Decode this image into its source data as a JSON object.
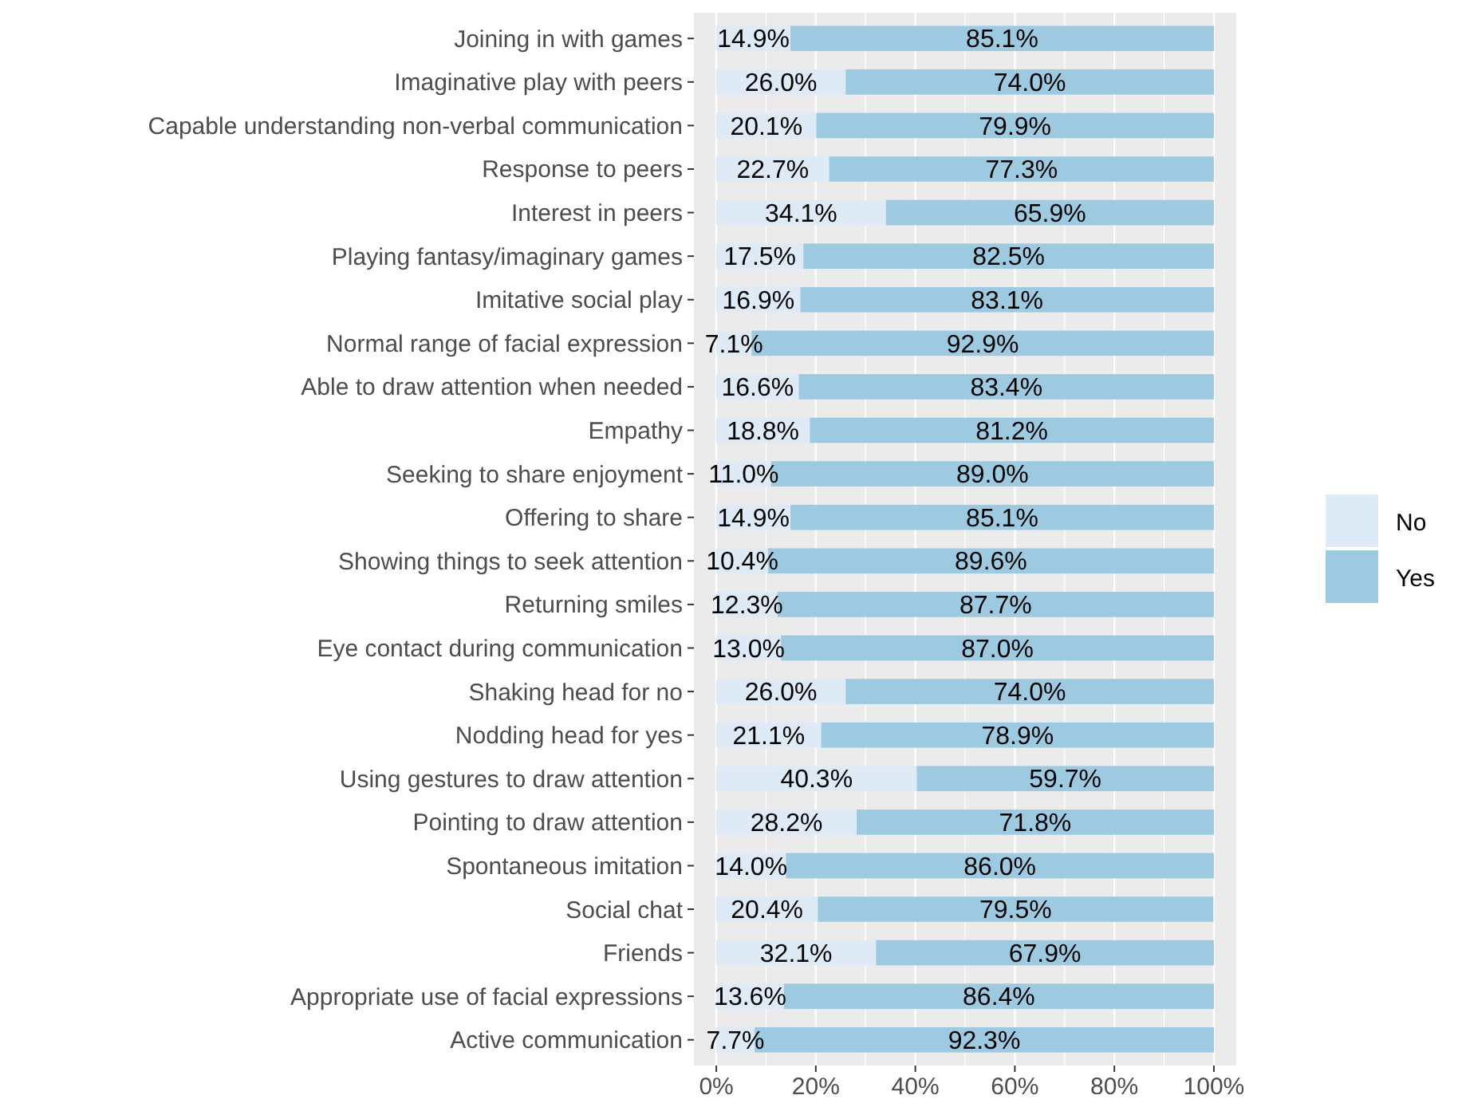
{
  "chart_data": {
    "type": "bar",
    "orientation": "horizontal",
    "stacked": true,
    "categories": [
      "Joining in with games",
      "Imaginative play with peers",
      "Capable understanding non-verbal communication",
      "Response to peers",
      "Interest in peers",
      "Playing fantasy/imaginary games",
      "Imitative social play",
      "Normal range of facial expression",
      "Able to draw attention when needed",
      "Empathy",
      "Seeking to share enjoyment",
      "Offering to share",
      "Showing things to seek attention",
      "Returning smiles",
      "Eye contact during communication",
      "Shaking head for no",
      "Nodding head for yes",
      "Using gestures to draw attention",
      "Pointing to draw attention",
      "Spontaneous imitation",
      "Social chat",
      "Friends",
      "Appropriate use of facial expressions",
      "Active communication"
    ],
    "series": [
      {
        "name": "No",
        "color": "#deebf7",
        "values": [
          14.9,
          26.0,
          20.1,
          22.7,
          34.1,
          17.5,
          16.9,
          7.1,
          16.6,
          18.8,
          11.0,
          14.9,
          10.4,
          12.3,
          13.0,
          26.0,
          21.1,
          40.3,
          28.2,
          14.0,
          20.4,
          32.1,
          13.6,
          7.7
        ],
        "value_labels": [
          "14.9%",
          "26.0%",
          "20.1%",
          "22.7%",
          "34.1%",
          "17.5%",
          "16.9%",
          "7.1%",
          "16.6%",
          "18.8%",
          "11.0%",
          "14.9%",
          "10.4%",
          "12.3%",
          "13.0%",
          "26.0%",
          "21.1%",
          "40.3%",
          "28.2%",
          "14.0%",
          "20.4%",
          "32.1%",
          "13.6%",
          "7.7%"
        ]
      },
      {
        "name": "Yes",
        "color": "#9ecae1",
        "values": [
          85.1,
          74.0,
          79.9,
          77.3,
          65.9,
          82.5,
          83.1,
          92.9,
          83.4,
          81.2,
          89.0,
          85.1,
          89.6,
          87.7,
          87.0,
          74.0,
          78.9,
          59.7,
          71.8,
          86.0,
          79.5,
          67.9,
          86.4,
          92.3
        ],
        "value_labels": [
          "85.1%",
          "74.0%",
          "79.9%",
          "77.3%",
          "65.9%",
          "82.5%",
          "83.1%",
          "92.9%",
          "83.4%",
          "81.2%",
          "89.0%",
          "85.1%",
          "89.6%",
          "87.7%",
          "87.0%",
          "74.0%",
          "78.9%",
          "59.7%",
          "71.8%",
          "86.0%",
          "79.5%",
          "67.9%",
          "86.4%",
          "92.3%"
        ]
      }
    ],
    "xlim": [
      0,
      100
    ],
    "xticks": [
      {
        "value": 0,
        "label": "0%"
      },
      {
        "value": 20,
        "label": "20%"
      },
      {
        "value": 40,
        "label": "40%"
      },
      {
        "value": 60,
        "label": "60%"
      },
      {
        "value": 80,
        "label": "80%"
      },
      {
        "value": 100,
        "label": "100%"
      }
    ],
    "grid": "x",
    "legend": "right"
  }
}
